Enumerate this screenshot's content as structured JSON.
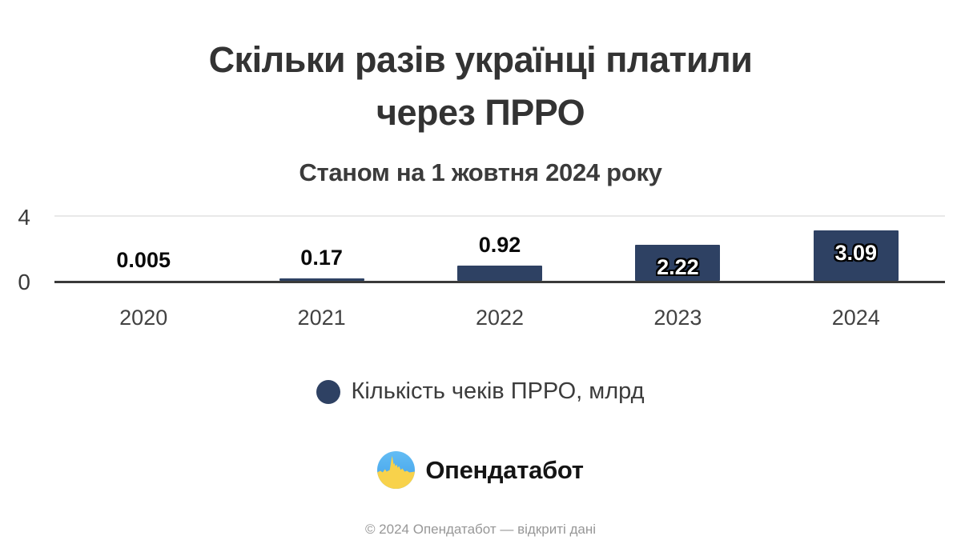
{
  "title": {
    "line1": "Скільки разів українці платили",
    "line2": "через ПРРО"
  },
  "subtitle": "Станом на 1 жовтня 2024 року",
  "chart_data": {
    "type": "bar",
    "title": "Скільки разів українці платили через ПРРО",
    "subtitle": "Станом на 1 жовтня 2024 року",
    "categories": [
      "2020",
      "2021",
      "2022",
      "2023",
      "2024"
    ],
    "values": [
      0.005,
      0.17,
      0.92,
      2.22,
      3.09
    ],
    "value_labels": [
      "0.005",
      "0.17",
      "0.92",
      "2.22",
      "3.09"
    ],
    "series": [
      {
        "name": "Кількість чеків ПРРО, млрд",
        "values": [
          0.005,
          0.17,
          0.92,
          2.22,
          3.09
        ]
      }
    ],
    "xlabel": "",
    "ylabel": "",
    "ylim": [
      0,
      4
    ],
    "yticks": [
      "4",
      "0"
    ],
    "grid": "single top gridline at y=4",
    "legend_position": "bottom-center",
    "bar_color": "#2e4163",
    "label_inside_threshold": 2
  },
  "yaxis": {
    "top_tick": "4",
    "bottom_tick": "0"
  },
  "legend": {
    "label": "Кількість чеків ПРРО, млрд",
    "dot_color": "#2e4163"
  },
  "logo": {
    "text": "Опендатабот",
    "blue_light": "#63bdf4",
    "blue": "#3f9ee9",
    "yellow": "#f8d24b"
  },
  "footer": "© 2024 Опендатабот — відкриті дані"
}
